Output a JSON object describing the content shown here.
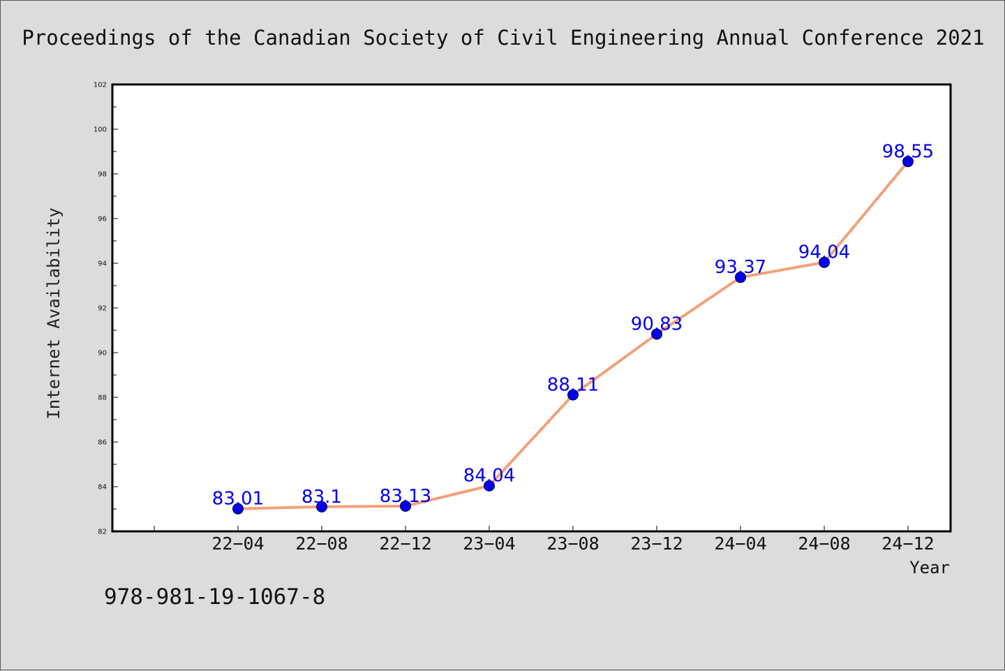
{
  "page": {
    "header": "Proceedings of the Canadian Society of Civil Engineering Annual Conference 2021",
    "isbn": "978-981-19-1067-8"
  },
  "colors": {
    "background": "#dcdcdc",
    "plot_background": "#ffffff",
    "line": "#f4a07a",
    "marker": "#0000ee",
    "data_label": "#0000ee"
  },
  "chart_data": {
    "type": "line",
    "title": "",
    "xlabel": "Year",
    "ylabel": "Internet Availability",
    "categories": [
      "22-04",
      "22-08",
      "22-12",
      "23-04",
      "23-08",
      "23-12",
      "24-04",
      "24-08",
      "24-12"
    ],
    "x_tick_labels": [
      "22−04",
      "22−08",
      "22−12",
      "23−04",
      "23−08",
      "23−12",
      "24−04",
      "24−08",
      "24−12"
    ],
    "series": [
      {
        "values": [
          83.01,
          83.1,
          83.13,
          84.04,
          88.11,
          90.83,
          93.37,
          94.04,
          98.55
        ],
        "labels": [
          "83.01",
          "83.1",
          "83.13",
          "84.04",
          "88.11",
          "90.83",
          "93.37",
          "94.04",
          "98.55"
        ]
      }
    ],
    "ylim": [
      82,
      102
    ],
    "y_ticks": [
      82,
      84,
      86,
      88,
      90,
      92,
      94,
      96,
      98,
      100,
      102
    ],
    "grid": false,
    "legend": "none"
  }
}
